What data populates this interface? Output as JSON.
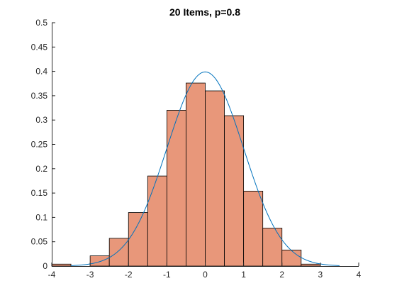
{
  "chart_data": {
    "type": "bar",
    "title": "20 Items, p=0.8",
    "xlabel": "",
    "ylabel": "",
    "xlim": [
      -4,
      4
    ],
    "ylim": [
      0,
      0.5
    ],
    "xticks": [
      "-4",
      "-3",
      "-2",
      "-1",
      "0",
      "1",
      "2",
      "3",
      "4"
    ],
    "yticks": [
      "0",
      "0.05",
      "0.1",
      "0.15",
      "0.2",
      "0.25",
      "0.3",
      "0.35",
      "0.4",
      "0.45",
      "0.5"
    ],
    "grid": false,
    "legend": "none",
    "bins": [
      {
        "x0": -4.0,
        "x1": -3.5,
        "value": 0.004
      },
      {
        "x0": -3.5,
        "x1": -3.0,
        "value": 0.0
      },
      {
        "x0": -3.0,
        "x1": -2.5,
        "value": 0.021
      },
      {
        "x0": -2.5,
        "x1": -2.0,
        "value": 0.057
      },
      {
        "x0": -2.0,
        "x1": -1.5,
        "value": 0.11
      },
      {
        "x0": -1.5,
        "x1": -1.0,
        "value": 0.185
      },
      {
        "x0": -1.0,
        "x1": -0.5,
        "value": 0.32
      },
      {
        "x0": -0.5,
        "x1": 0.0,
        "value": 0.376
      },
      {
        "x0": 0.0,
        "x1": 0.5,
        "value": 0.36
      },
      {
        "x0": 0.5,
        "x1": 1.0,
        "value": 0.309
      },
      {
        "x0": 1.0,
        "x1": 1.5,
        "value": 0.154
      },
      {
        "x0": 1.5,
        "x1": 2.0,
        "value": 0.078
      },
      {
        "x0": 2.0,
        "x1": 2.5,
        "value": 0.033
      },
      {
        "x0": 2.5,
        "x1": 3.0,
        "value": 0.004
      }
    ],
    "curve": {
      "type": "normal-pdf",
      "mean": 0,
      "sd": 1,
      "color": "#0072BD"
    },
    "colors": {
      "bar_fill": "#E8977A",
      "bar_edge": "#000000",
      "axis": "#262626"
    }
  }
}
